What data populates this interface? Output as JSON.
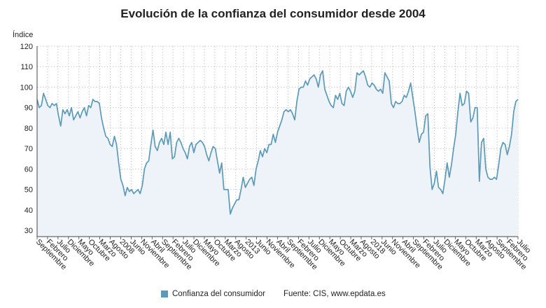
{
  "chart_data": {
    "type": "area",
    "title": "Evolución de la confianza del consumidor desde 2004",
    "ylabel": "Índice",
    "xlabel": "",
    "ylim": [
      27,
      120
    ],
    "yticks": [
      30,
      40,
      50,
      60,
      70,
      80,
      90,
      100,
      110,
      120
    ],
    "grid": true,
    "x_tick_labels": [
      "Septiembre",
      "Febrero",
      "Julio",
      "Diciembre",
      "Mayo",
      "Octubre",
      "Marzo",
      "Agosto",
      "2008",
      "Junio",
      "Noviembre",
      "Abril",
      "Septiembre",
      "Febrero",
      "Julio",
      "Diciembre",
      "Mayo",
      "Octubre",
      "Marzo",
      "Agosto",
      "2013",
      "Junio",
      "Noviembre",
      "Abril",
      "Septiembre",
      "Febrero",
      "Julio",
      "Diciembre",
      "Mayo",
      "Octubre",
      "Marzo",
      "Agosto",
      "2018",
      "Junio",
      "Noviembre",
      "Abril",
      "Septiembre",
      "Febrero",
      "Julio",
      "Diciembre",
      "Mayo",
      "Octubre",
      "Marzo",
      "Agosto",
      "Septiembre",
      "Febrero",
      "Julio"
    ],
    "series": [
      {
        "name": "Confianza del consumidor",
        "values": [
          94,
          90,
          91,
          97,
          94,
          91,
          90,
          92,
          91,
          92,
          86,
          81,
          89,
          87,
          89,
          86,
          90,
          84,
          86,
          88,
          85,
          88,
          90,
          86,
          91,
          90,
          94,
          93,
          93,
          92,
          85,
          80,
          76,
          75,
          72,
          71,
          76,
          72,
          63,
          55,
          52,
          47,
          51,
          49,
          50,
          48,
          49,
          50,
          48,
          52,
          60,
          63,
          64,
          72,
          79,
          71,
          69,
          73,
          75,
          72,
          78,
          72,
          78,
          65,
          66,
          73,
          75,
          73,
          70,
          68,
          65,
          71,
          73,
          68,
          72,
          73,
          74,
          73,
          71,
          67,
          64,
          68,
          71,
          70,
          64,
          58,
          63,
          50,
          50,
          50,
          38,
          41,
          43,
          45,
          45,
          50,
          56,
          51,
          53,
          55,
          56,
          52,
          60,
          64,
          69,
          66,
          70,
          68,
          72,
          72,
          77,
          73,
          78,
          81,
          84,
          88,
          89,
          88,
          89,
          87,
          84,
          93,
          99,
          100,
          100,
          103,
          101,
          104,
          105,
          106,
          104,
          100,
          106,
          108,
          99,
          96,
          93,
          91,
          90,
          96,
          94,
          97,
          92,
          91,
          98,
          100,
          98,
          95,
          98,
          107,
          106,
          107,
          108,
          105,
          101,
          100,
          102,
          101,
          99,
          98,
          99,
          97,
          107,
          105,
          103,
          92,
          90,
          93,
          92,
          92,
          93,
          96,
          95,
          98,
          102,
          95,
          88,
          80,
          73,
          77,
          78,
          86,
          87,
          61,
          50,
          53,
          59,
          51,
          50,
          48,
          55,
          63,
          56,
          62,
          70,
          77,
          88,
          97,
          91,
          92,
          98,
          97,
          83,
          85,
          90,
          90,
          54,
          73,
          75,
          60,
          56,
          55,
          55,
          56,
          55,
          62,
          70,
          73,
          72,
          67,
          71,
          77,
          88,
          93,
          94
        ]
      }
    ]
  },
  "legend": {
    "label": "Confianza del consumidor",
    "source": "Fuente: CIS, www.epdata.es"
  },
  "colors": {
    "line": "#5b9ab8",
    "area": "#edf3f8",
    "grid": "#b9b9c9",
    "axis": "#444444"
  }
}
